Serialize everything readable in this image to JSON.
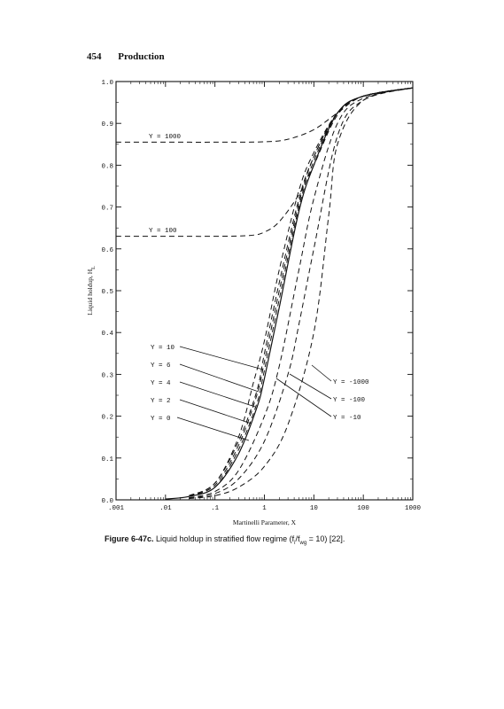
{
  "header": {
    "page_number": "454",
    "section": "Production"
  },
  "caption": {
    "label": "Figure 6-47c.",
    "text_pre": " Liquid holdup in stratified flow regime (f",
    "sub1": "i",
    "slash": "/f",
    "sub2": "wg",
    "text_post": " = 10) [22]."
  },
  "chart_data": {
    "type": "line",
    "xlabel": "Martinelli Parameter, X",
    "ylabel": "Liquid holdup, H",
    "ylabel_sub": "L",
    "x_scale": "log",
    "xlim": [
      0.001,
      1000
    ],
    "ylim": [
      0.0,
      1.0
    ],
    "x_tick_labels": [
      ".001",
      ".01",
      ".1",
      "1",
      "10",
      "100",
      "1000"
    ],
    "y_tick_labels": [
      "0.0",
      "0.1",
      "0.2",
      "0.3",
      "0.4",
      "0.5",
      "0.6",
      "0.7",
      "0.8",
      "0.9",
      "1.0"
    ],
    "grid": false,
    "series": [
      {
        "name": "Y = 1000",
        "style": "dashed",
        "x": [
          0.001,
          0.01,
          0.1,
          1,
          3,
          10,
          30,
          100,
          1000
        ],
        "y": [
          0.855,
          0.855,
          0.855,
          0.856,
          0.862,
          0.885,
          0.925,
          0.965,
          0.985
        ]
      },
      {
        "name": "Y = 100",
        "style": "dashed",
        "x": [
          0.001,
          0.01,
          0.1,
          0.5,
          1,
          2,
          5,
          10,
          30,
          100,
          1000
        ],
        "y": [
          0.63,
          0.63,
          0.63,
          0.632,
          0.64,
          0.665,
          0.73,
          0.8,
          0.92,
          0.965,
          0.985
        ]
      },
      {
        "name": "Y = 10",
        "style": "dashed",
        "x": [
          0.03,
          0.1,
          0.3,
          0.6,
          1,
          2,
          5,
          10,
          30,
          100,
          1000
        ],
        "y": [
          0.01,
          0.04,
          0.15,
          0.28,
          0.38,
          0.55,
          0.74,
          0.83,
          0.925,
          0.965,
          0.985
        ]
      },
      {
        "name": "Y = 6",
        "style": "dashed",
        "x": [
          0.03,
          0.1,
          0.3,
          0.7,
          1,
          2,
          5,
          10,
          30,
          100,
          1000
        ],
        "y": [
          0.01,
          0.04,
          0.14,
          0.26,
          0.35,
          0.52,
          0.72,
          0.82,
          0.925,
          0.965,
          0.985
        ]
      },
      {
        "name": "Y = 4",
        "style": "dashed",
        "x": [
          0.03,
          0.1,
          0.3,
          0.7,
          1,
          2,
          5,
          10,
          30,
          100,
          1000
        ],
        "y": [
          0.01,
          0.035,
          0.13,
          0.25,
          0.33,
          0.5,
          0.71,
          0.82,
          0.925,
          0.965,
          0.985
        ]
      },
      {
        "name": "Y = 2",
        "style": "dashed",
        "x": [
          0.03,
          0.1,
          0.3,
          0.7,
          1,
          2,
          5,
          10,
          30,
          100,
          1000
        ],
        "y": [
          0.01,
          0.03,
          0.12,
          0.23,
          0.31,
          0.48,
          0.7,
          0.81,
          0.925,
          0.965,
          0.985
        ]
      },
      {
        "name": "Y = 0",
        "style": "solid",
        "x": [
          0.01,
          0.03,
          0.1,
          0.3,
          0.7,
          1,
          2,
          5,
          10,
          30,
          100,
          1000
        ],
        "y": [
          0.002,
          0.008,
          0.03,
          0.11,
          0.22,
          0.29,
          0.46,
          0.69,
          0.8,
          0.925,
          0.965,
          0.985
        ]
      },
      {
        "name": "Y = -10",
        "style": "dashed",
        "x": [
          0.03,
          0.1,
          0.3,
          1,
          2,
          5,
          10,
          30,
          100,
          1000
        ],
        "y": [
          0.005,
          0.02,
          0.07,
          0.2,
          0.32,
          0.55,
          0.72,
          0.9,
          0.96,
          0.985
        ]
      },
      {
        "name": "Y = -100",
        "style": "dashed",
        "x": [
          0.03,
          0.1,
          0.3,
          1,
          3,
          5,
          10,
          30,
          100,
          1000
        ],
        "y": [
          0.004,
          0.015,
          0.05,
          0.14,
          0.3,
          0.42,
          0.6,
          0.87,
          0.955,
          0.985
        ]
      },
      {
        "name": "Y = -1000",
        "style": "dashed",
        "x": [
          0.03,
          0.1,
          0.3,
          1,
          3,
          10,
          20,
          30,
          100,
          1000
        ],
        "y": [
          0.003,
          0.01,
          0.03,
          0.08,
          0.18,
          0.4,
          0.68,
          0.85,
          0.955,
          0.985
        ]
      }
    ],
    "labels": [
      {
        "text": "Y = 1000"
      },
      {
        "text": "Y = 100"
      },
      {
        "text": "Y = 10"
      },
      {
        "text": "Y = 6"
      },
      {
        "text": "Y = 4"
      },
      {
        "text": "Y = 2"
      },
      {
        "text": "Y = 0"
      },
      {
        "text": "Y = -1000"
      },
      {
        "text": "Y = -100"
      },
      {
        "text": "Y = -10"
      }
    ]
  }
}
